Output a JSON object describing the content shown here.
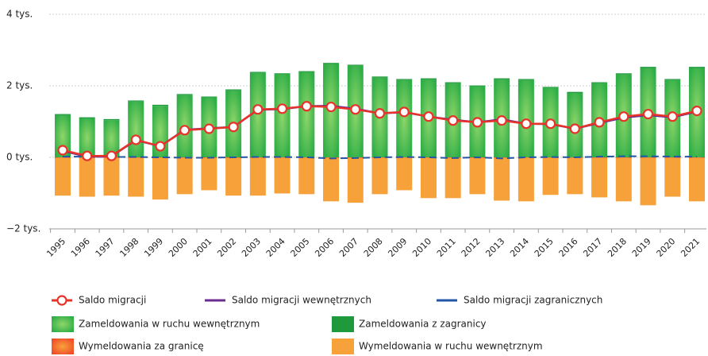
{
  "chart_data": {
    "type": "bar",
    "categories": [
      "1995",
      "1996",
      "1997",
      "1998",
      "1999",
      "2000",
      "2001",
      "2002",
      "2003",
      "2004",
      "2005",
      "2006",
      "2007",
      "2008",
      "2009",
      "2010",
      "2011",
      "2012",
      "2013",
      "2014",
      "2015",
      "2016",
      "2017",
      "2018",
      "2019",
      "2020",
      "2021"
    ],
    "ylim": [
      -2,
      4
    ],
    "yticks": [
      {
        "value": -2,
        "label": "−2 tys."
      },
      {
        "value": 0,
        "label": "0 tys."
      },
      {
        "value": 2,
        "label": "2 tys."
      },
      {
        "value": 4,
        "label": "4 tys."
      }
    ],
    "grid": true,
    "series": [
      {
        "name": "Saldo migracji",
        "type": "line",
        "marker": true,
        "color": "#e8332a",
        "values": [
          0.2,
          0.04,
          0.04,
          0.49,
          0.31,
          0.76,
          0.8,
          0.85,
          1.34,
          1.36,
          1.43,
          1.41,
          1.34,
          1.23,
          1.27,
          1.14,
          1.03,
          0.98,
          1.03,
          0.94,
          0.94,
          0.8,
          0.98,
          1.14,
          1.21,
          1.14,
          1.3
        ]
      },
      {
        "name": "Saldo migracji wewnętrznych",
        "type": "line",
        "color": "#6b2c8f",
        "values": [
          0.18,
          0.02,
          0.03,
          0.48,
          0.31,
          0.77,
          0.81,
          0.85,
          1.33,
          1.35,
          1.43,
          1.44,
          1.36,
          1.23,
          1.26,
          1.14,
          1.05,
          0.98,
          1.06,
          0.94,
          0.93,
          0.8,
          0.96,
          1.11,
          1.18,
          1.12,
          1.28
        ]
      },
      {
        "name": "Saldo migracji zagranicznych",
        "type": "line",
        "dashed": true,
        "color": "#2356a8",
        "values": [
          0.02,
          0.02,
          0.01,
          0.01,
          0,
          -0.01,
          -0.01,
          0,
          0.01,
          0.01,
          0,
          -0.03,
          -0.02,
          0,
          0.01,
          0,
          -0.02,
          0,
          -0.03,
          0,
          0.01,
          0,
          0.02,
          0.03,
          0.03,
          0.02,
          0.02
        ]
      },
      {
        "name": "Zameldowania w ruchu wewnętrznym",
        "type": "bar",
        "color": "#3fb649",
        "values": [
          1.18,
          1.09,
          1.04,
          1.56,
          1.44,
          1.74,
          1.67,
          1.87,
          2.36,
          2.32,
          2.38,
          2.61,
          2.56,
          2.23,
          2.16,
          2.18,
          2.07,
          1.98,
          2.18,
          2.16,
          1.94,
          1.8,
          2.07,
          2.32,
          2.5,
          2.16,
          2.5
        ]
      },
      {
        "name": "Zameldowania z zagranicy",
        "type": "bar",
        "color": "#1e9a3c",
        "values": [
          0.03,
          0.03,
          0.03,
          0.03,
          0.03,
          0.03,
          0.03,
          0.03,
          0.03,
          0.03,
          0.03,
          0.03,
          0.03,
          0.03,
          0.03,
          0.03,
          0.03,
          0.03,
          0.03,
          0.03,
          0.03,
          0.03,
          0.03,
          0.03,
          0.03,
          0.03,
          0.03
        ]
      },
      {
        "name": "Wymeldowania za granicę",
        "type": "bar",
        "color": "#f2612a",
        "values": [
          -0.02,
          -0.02,
          -0.02,
          -0.02,
          -0.02,
          -0.02,
          -0.02,
          -0.02,
          -0.02,
          -0.02,
          -0.02,
          -0.02,
          -0.02,
          -0.02,
          -0.02,
          -0.02,
          -0.02,
          -0.02,
          -0.02,
          -0.02,
          -0.02,
          -0.02,
          -0.02,
          -0.02,
          -0.02,
          -0.02,
          -0.02
        ]
      },
      {
        "name": "Wymeldowania w ruchu wewnętrznym",
        "type": "bar",
        "color": "#f7a13a",
        "values": [
          -1.05,
          -1.08,
          -1.05,
          -1.08,
          -1.16,
          -1.01,
          -0.9,
          -1.05,
          -1.05,
          -0.99,
          -1.01,
          -1.21,
          -1.25,
          -1.01,
          -0.9,
          -1.12,
          -1.12,
          -1.01,
          -1.19,
          -1.21,
          -1.03,
          -1.01,
          -1.1,
          -1.21,
          -1.32,
          -1.08,
          -1.21
        ]
      }
    ]
  }
}
